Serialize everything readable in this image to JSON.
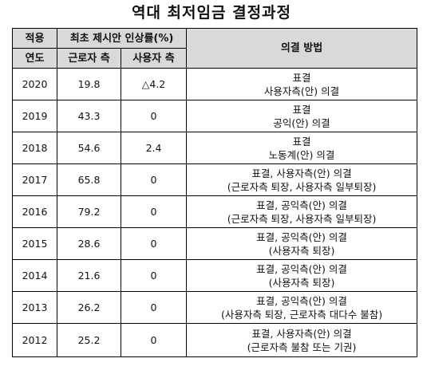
{
  "title": "역대 최저임금 결정과정",
  "headers": {
    "year_line1": "적용",
    "year_line2": "연도",
    "proposal_group": "최초 제시안 인상률(%)",
    "labor": "근로자 측",
    "business": "사용자 측",
    "method": "의결 방법"
  },
  "rows": [
    {
      "year": "2020",
      "labor": "19.8",
      "business": "△4.2",
      "method_line1": "표결",
      "method_line2": "사용자측(안) 의결"
    },
    {
      "year": "2019",
      "labor": "43.3",
      "business": "0",
      "method_line1": "표결",
      "method_line2": "공익(안) 의결"
    },
    {
      "year": "2018",
      "labor": "54.6",
      "business": "2.4",
      "method_line1": "표결",
      "method_line2": "노동계(안) 의결"
    },
    {
      "year": "2017",
      "labor": "65.8",
      "business": "0",
      "method_line1": "표결, 사용자측(안) 의결",
      "method_line2": "(근로자측 퇴장, 사용자측 일부퇴장)"
    },
    {
      "year": "2016",
      "labor": "79.2",
      "business": "0",
      "method_line1": "표결, 공익측(안) 의결",
      "method_line2": "(근로자측 퇴장, 사용자측 일부퇴장)"
    },
    {
      "year": "2015",
      "labor": "28.6",
      "business": "0",
      "method_line1": "표결, 공익측(안) 의결",
      "method_line2": "(사용자측 퇴장)"
    },
    {
      "year": "2014",
      "labor": "21.6",
      "business": "0",
      "method_line1": "표결, 공익측(안) 의결",
      "method_line2": "(사용자측 퇴장)"
    },
    {
      "year": "2013",
      "labor": "26.2",
      "business": "0",
      "method_line1": "표결, 공익측(안) 의결",
      "method_line2": "(사용자측 퇴장, 근로자측 대다수 불참)"
    },
    {
      "year": "2012",
      "labor": "25.2",
      "business": "0",
      "method_line1": "표결, 사용자측(안) 의결",
      "method_line2": "(근로자측 불참 또는 기권)"
    }
  ]
}
